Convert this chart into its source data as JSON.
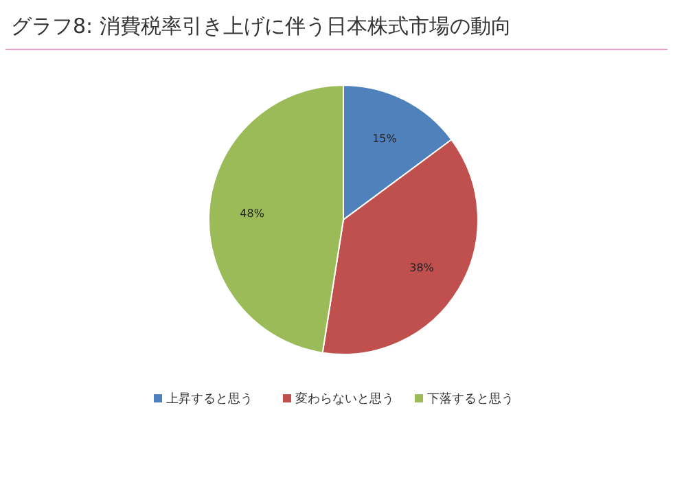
{
  "chart_data": {
    "type": "pie",
    "title": "グラフ8: 消費税率引き上げに伴う日本株式市場の動向",
    "categories": [
      "上昇すると思う",
      "変わらないと思う",
      "下落すると思う"
    ],
    "values": [
      15,
      38,
      48
    ],
    "colors": [
      "#4f81bd",
      "#c0504d",
      "#9bbb59"
    ],
    "value_labels": [
      "15%",
      "38%",
      "48%"
    ],
    "legend": "bottom"
  }
}
